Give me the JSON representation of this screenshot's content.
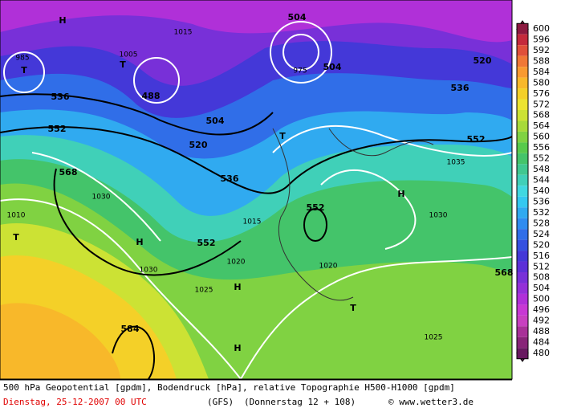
{
  "colorbar": {
    "labels": [
      600,
      596,
      592,
      588,
      584,
      580,
      576,
      572,
      568,
      564,
      560,
      556,
      552,
      548,
      544,
      540,
      536,
      532,
      528,
      524,
      520,
      516,
      512,
      508,
      504,
      500,
      496,
      492,
      488,
      484,
      480
    ],
    "colors": [
      "#8c1a40",
      "#c42a3c",
      "#e0503a",
      "#f07836",
      "#f89a30",
      "#f8b82a",
      "#f4d028",
      "#ece430",
      "#cce234",
      "#a8da3a",
      "#80d242",
      "#58ca4c",
      "#44c46a",
      "#40c890",
      "#40d0b8",
      "#40d8e0",
      "#34c8f0",
      "#30aaf0",
      "#308cf0",
      "#306ee8",
      "#3450e0",
      "#4438d8",
      "#5c30d8",
      "#7830d8",
      "#9430d8",
      "#b030d8",
      "#c838d4",
      "#c840c0",
      "#a83098",
      "#882478",
      "#681860"
    ]
  },
  "map_labels": [
    "552",
    "552",
    "552",
    "552",
    "536",
    "536",
    "536",
    "520",
    "520",
    "504",
    "504",
    "504",
    "488",
    "568",
    "568",
    "584",
    "1015",
    "1030",
    "1030",
    "1020",
    "1020",
    "1025",
    "1035",
    "1030",
    "1010",
    "1025",
    "1005",
    "985",
    "975",
    "1015",
    "H",
    "H",
    "H",
    "H",
    "H",
    "T",
    "T",
    "T",
    "T",
    "T"
  ],
  "footer": {
    "line1": "500 hPa Geopotential [gpdm], Bodendruck [hPa], relative Topographie H500-H1000 [gpdm]",
    "date": "Dienstag, 25-12-2007  00 UTC",
    "model": "(GFS)",
    "forecast": "(Donnerstag 12 + 108)",
    "credit": "© www.wetter3.de"
  }
}
